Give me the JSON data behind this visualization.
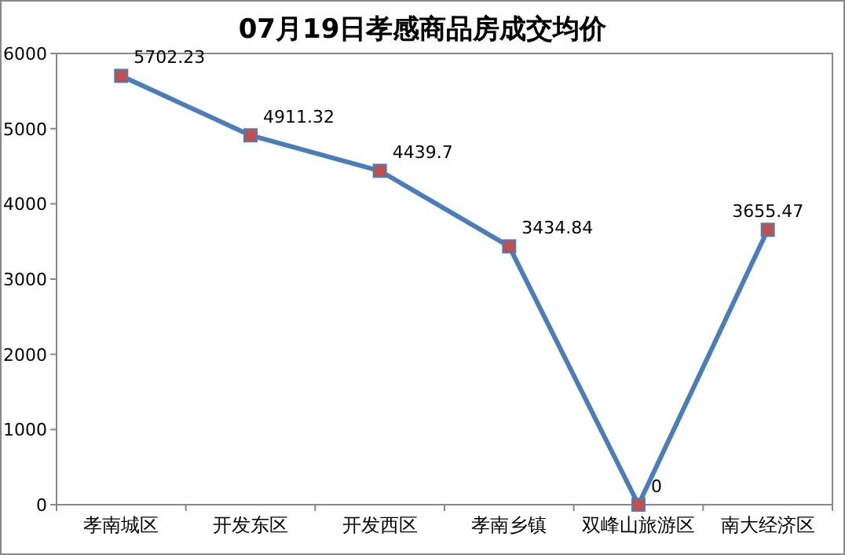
{
  "chart_data": {
    "type": "line",
    "title": "07月19日孝感商品房成交均价",
    "categories": [
      "孝南城区",
      "开发东区",
      "开发西区",
      "孝南乡镇",
      "双峰山旅游区",
      "南大经济区"
    ],
    "series": [
      {
        "color": "#4a7ebb",
        "values": [
          5702.23,
          4911.32,
          4439.7,
          3434.84,
          0,
          3655.47
        ]
      }
    ],
    "ylim": [
      0,
      6000
    ],
    "yticks": [
      0,
      1000,
      2000,
      3000,
      4000,
      5000,
      6000
    ],
    "marker": "square",
    "data_labels": true
  }
}
